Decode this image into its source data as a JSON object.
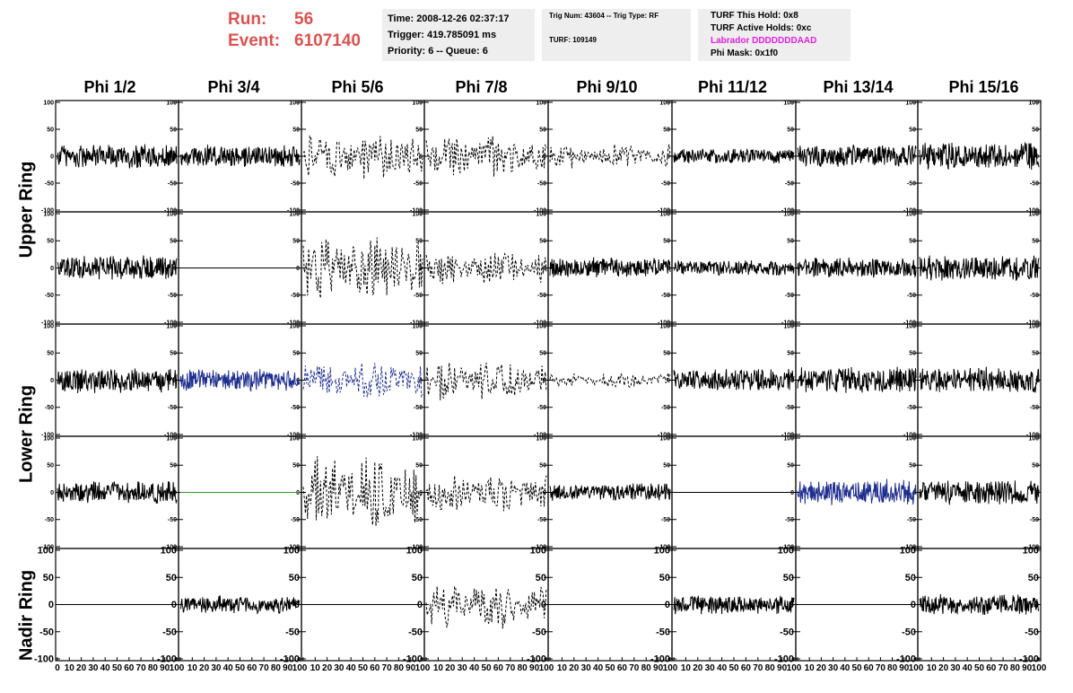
{
  "header": {
    "run_label": "Run:",
    "run_value": "56",
    "event_label": "Event:",
    "event_value": "6107140",
    "time": "Time: 2008-12-26 02:37:17",
    "trigger": "Trigger: 419.785091 ms",
    "priority": "Priority: 6 -- Queue: 6",
    "trig_num": "Trig Num: 43604 -- Trig Type: RF",
    "turf": "TURF: 109149",
    "turf_this_hold": "TURF This Hold: 0x8",
    "turf_active_holds": "TURF Active Holds: 0xc",
    "labrador": "Labrador DDDDDDDAAD",
    "phi_mask": "Phi Mask: 0x1f0"
  },
  "columns": [
    "Phi 1/2",
    "Phi 3/4",
    "Phi 5/6",
    "Phi 7/8",
    "Phi 9/10",
    "Phi 11/12",
    "Phi 13/14",
    "Phi 15/16"
  ],
  "row_labels": [
    "Upper Ring",
    "Lower Ring",
    "Nadir Ring"
  ],
  "colors": {
    "run": "#d9534f",
    "labrador": "#e020e0",
    "trace_black": "#000000",
    "trace_blue": "#1f2f8f",
    "trace_green": "#2a9a2a"
  },
  "chart_data": {
    "type": "line",
    "title": "",
    "xlim": [
      0,
      100
    ],
    "ylim": [
      -100,
      100
    ],
    "x_ticks": [
      "0",
      "10",
      "20",
      "30",
      "40",
      "50",
      "60",
      "70",
      "80",
      "90",
      "100"
    ],
    "y_ticks": [
      "100",
      "50",
      "0",
      "-50",
      "-100"
    ],
    "grid": false,
    "rows": 5,
    "cols": 8,
    "panels": [
      [
        {
          "s": "solid",
          "a": 25,
          "c": "black"
        },
        {
          "s": "solid",
          "a": 22,
          "c": "black"
        },
        {
          "s": "dashed",
          "a": 50,
          "c": "black"
        },
        {
          "s": "dashed",
          "a": 45,
          "c": "black"
        },
        {
          "s": "dashed",
          "a": 25,
          "c": "black"
        },
        {
          "s": "solid",
          "a": 15,
          "c": "black"
        },
        {
          "s": "solid",
          "a": 22,
          "c": "black"
        },
        {
          "s": "solid",
          "a": 28,
          "c": "black"
        }
      ],
      [
        {
          "s": "solid",
          "a": 25,
          "c": "black"
        },
        {
          "s": "flat",
          "a": 0,
          "c": "black"
        },
        {
          "s": "dashed",
          "a": 70,
          "c": "black"
        },
        {
          "s": "dashed",
          "a": 35,
          "c": "black"
        },
        {
          "s": "solid",
          "a": 20,
          "c": "black"
        },
        {
          "s": "solid",
          "a": 15,
          "c": "black"
        },
        {
          "s": "solid",
          "a": 20,
          "c": "black"
        },
        {
          "s": "solid",
          "a": 25,
          "c": "black"
        }
      ],
      [
        {
          "s": "solid",
          "a": 25,
          "c": "black"
        },
        {
          "s": "solid",
          "a": 22,
          "c": "blue"
        },
        {
          "s": "dashed",
          "a": 40,
          "c": "blue"
        },
        {
          "s": "dashed",
          "a": 45,
          "c": "black"
        },
        {
          "s": "dashed",
          "a": 15,
          "c": "black"
        },
        {
          "s": "solid",
          "a": 22,
          "c": "black"
        },
        {
          "s": "solid",
          "a": 25,
          "c": "black"
        },
        {
          "s": "solid",
          "a": 25,
          "c": "black"
        }
      ],
      [
        {
          "s": "solid",
          "a": 22,
          "c": "black"
        },
        {
          "s": "flat",
          "a": 0,
          "c": "green"
        },
        {
          "s": "dashed",
          "a": 75,
          "c": "black"
        },
        {
          "s": "dashed",
          "a": 40,
          "c": "black"
        },
        {
          "s": "solid",
          "a": 18,
          "c": "black"
        },
        {
          "s": "flat",
          "a": 0,
          "c": "black"
        },
        {
          "s": "solid",
          "a": 25,
          "c": "blue"
        },
        {
          "s": "solid",
          "a": 25,
          "c": "black"
        }
      ],
      [
        {
          "s": "flat",
          "a": 0,
          "c": "black"
        },
        {
          "s": "solid",
          "a": 18,
          "c": "black"
        },
        {
          "s": "flat",
          "a": 0,
          "c": "black"
        },
        {
          "s": "dashed",
          "a": 50,
          "c": "black"
        },
        {
          "s": "flat",
          "a": 0,
          "c": "black"
        },
        {
          "s": "solid",
          "a": 18,
          "c": "black"
        },
        {
          "s": "flat",
          "a": 0,
          "c": "black"
        },
        {
          "s": "solid",
          "a": 20,
          "c": "black"
        }
      ]
    ]
  }
}
